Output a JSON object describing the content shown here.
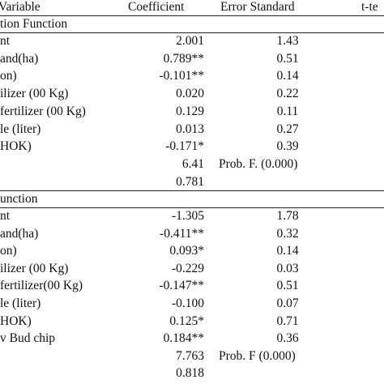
{
  "header": {
    "variable": "Variable",
    "coefficient": "Coefficient",
    "error": "Error Standard",
    "t": "t-te"
  },
  "section1": {
    "title": "tion Function",
    "rows": [
      {
        "label": "nt",
        "coef": "2.001",
        "err": "1.43"
      },
      {
        "label": "and(ha)",
        "coef": "0.789**",
        "err": "0.51"
      },
      {
        "label": "on)",
        "coef": "-0.101**",
        "err": "0.14"
      },
      {
        "label": "ilizer (00 Kg)",
        "coef": "0.020",
        "err": "0.22"
      },
      {
        "label": "fertilizer (00 Kg)",
        "coef": "0.129",
        "err": "0.11"
      },
      {
        "label": "le (liter)",
        "coef": "0.013",
        "err": "0.27"
      },
      {
        "label": "HOK)",
        "coef": "-0.171*",
        "err": "0.39"
      },
      {
        "label": "",
        "coef": "6.41",
        "err": "Prob. F. (0.000)"
      },
      {
        "label": "",
        "coef": "0.781",
        "err": ""
      }
    ]
  },
  "section2": {
    "title": "unction",
    "rows": [
      {
        "label": "nt",
        "coef": "-1.305",
        "err": "1.78"
      },
      {
        "label": "and(ha)",
        "coef": "-0.411**",
        "err": "0.32"
      },
      {
        "label": "on)",
        "coef": "0.093*",
        "err": "0.14"
      },
      {
        "label": "ilizer (00 Kg)",
        "coef": "-0.229",
        "err": "0.03"
      },
      {
        "label": "fertilizer(00 Kg)",
        "coef": "-0.147**",
        "err": "0.51"
      },
      {
        "label": "le (liter)",
        "coef": "-0.100",
        "err": "0.07"
      },
      {
        "label": "HOK)",
        "coef": "0.125*",
        "err": "0.71"
      },
      {
        "label": "v Bud chip",
        "coef": "0.184**",
        "err": "0.36"
      },
      {
        "label": "",
        "coef": "7.763",
        "err": "Prob. F (0.000)"
      },
      {
        "label": "",
        "coef": "0.818",
        "err": ""
      }
    ]
  }
}
